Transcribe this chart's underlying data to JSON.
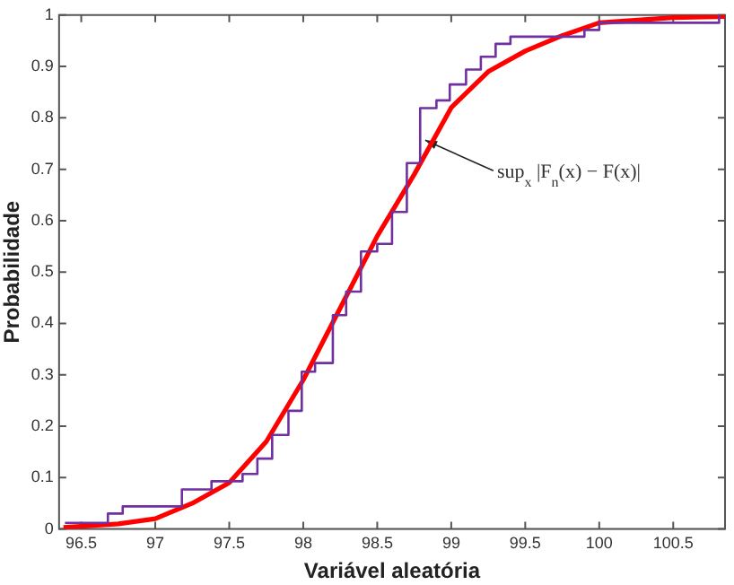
{
  "chart_data": {
    "type": "line",
    "xlabel": "Variável aleatória",
    "ylabel": "Probabilidade",
    "xlim": [
      96.35,
      100.85
    ],
    "xticks": [
      96.5,
      97,
      97.5,
      98,
      98.5,
      99,
      99.5,
      100,
      100.5
    ],
    "ylim": [
      0,
      1
    ],
    "yticks": [
      0,
      0.1,
      0.2,
      0.3,
      0.4,
      0.5,
      0.6,
      0.7,
      0.8,
      0.9,
      1
    ],
    "grid": false,
    "legend": false,
    "marker": "none",
    "series": [
      {
        "type": "step",
        "color": "#7030a0",
        "x": [
          96.39,
          96.68,
          96.78,
          97.18,
          97.38,
          97.59,
          97.69,
          97.79,
          97.9,
          97.99,
          98.08,
          98.2,
          98.29,
          98.39,
          98.5,
          98.6,
          98.7,
          98.79,
          98.9,
          98.99,
          99.1,
          99.2,
          99.3,
          99.4,
          99.9,
          100.0,
          100.81
        ],
        "values": [
          0.012,
          0.03,
          0.044,
          0.077,
          0.093,
          0.107,
          0.137,
          0.183,
          0.23,
          0.306,
          0.323,
          0.416,
          0.462,
          0.54,
          0.555,
          0.617,
          0.712,
          0.819,
          0.834,
          0.865,
          0.894,
          0.919,
          0.944,
          0.958,
          0.971,
          0.985,
          1.0
        ]
      },
      {
        "type": "line",
        "color": "#ff0000",
        "x": [
          96.38,
          96.75,
          97,
          97.25,
          97.5,
          97.75,
          98,
          98.25,
          98.5,
          98.75,
          99,
          99.25,
          99.5,
          99.75,
          100,
          100.5,
          100.85
        ],
        "values": [
          0.003,
          0.01,
          0.02,
          0.05,
          0.09,
          0.17,
          0.29,
          0.43,
          0.57,
          0.69,
          0.82,
          0.89,
          0.93,
          0.96,
          0.985,
          0.995,
          0.997
        ]
      }
    ],
    "annotations": [
      {
        "text": "sup$_{x}$ |F$_{n}$(x) − F(x)|",
        "x": 98.8,
        "y": 0.76
      }
    ]
  }
}
